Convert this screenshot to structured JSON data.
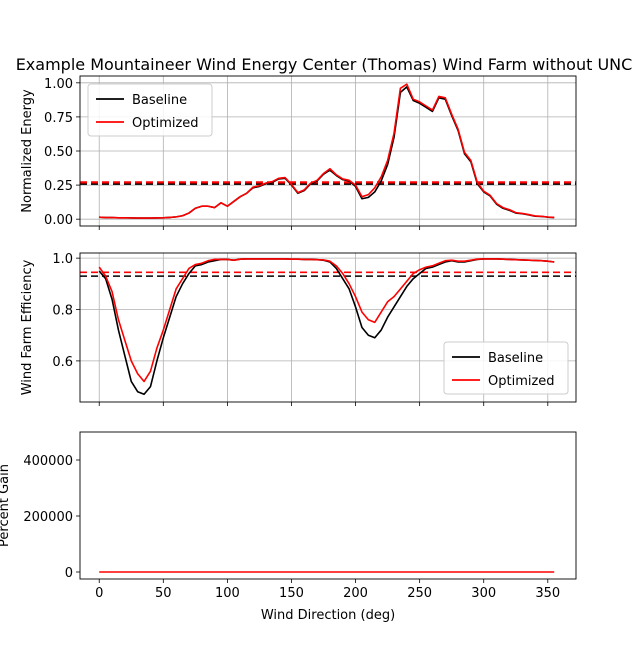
{
  "figure": {
    "title": "Example Mountaineer Wind Energy Center (Thomas) Wind Farm without UNC",
    "xlabel": "Wind Direction (deg)",
    "colors": {
      "baseline": "#000000",
      "optimized": "#ff0000",
      "grid": "#b0b0b0"
    }
  },
  "chart_data": [
    {
      "type": "line",
      "ylabel": "Normalized Energy",
      "xlim": [
        -15,
        372
      ],
      "ylim": [
        -0.05,
        1.05
      ],
      "xticks": [
        0,
        50,
        100,
        150,
        200,
        250,
        300,
        350
      ],
      "yticks": [
        0.0,
        0.25,
        0.5,
        0.75,
        1.0
      ],
      "ytick_labels": [
        "0.00",
        "0.25",
        "0.50",
        "0.75",
        "1.00"
      ],
      "grid": true,
      "legend_placement": "upper-left",
      "x": [
        0,
        5,
        10,
        15,
        20,
        25,
        30,
        35,
        40,
        45,
        50,
        55,
        60,
        65,
        70,
        75,
        80,
        85,
        90,
        95,
        100,
        105,
        110,
        115,
        120,
        125,
        130,
        135,
        140,
        145,
        150,
        155,
        160,
        165,
        170,
        175,
        180,
        185,
        190,
        195,
        200,
        205,
        210,
        215,
        220,
        225,
        230,
        235,
        240,
        245,
        250,
        255,
        260,
        265,
        270,
        275,
        280,
        285,
        290,
        295,
        300,
        305,
        310,
        315,
        320,
        325,
        330,
        335,
        340,
        345,
        350,
        355
      ],
      "series": [
        {
          "name": "Baseline",
          "color": "#000000",
          "values": [
            0.015,
            0.012,
            0.012,
            0.01,
            0.01,
            0.009,
            0.008,
            0.008,
            0.008,
            0.009,
            0.01,
            0.013,
            0.017,
            0.025,
            0.045,
            0.08,
            0.095,
            0.095,
            0.085,
            0.12,
            0.095,
            0.13,
            0.165,
            0.19,
            0.23,
            0.24,
            0.26,
            0.27,
            0.295,
            0.3,
            0.25,
            0.19,
            0.21,
            0.26,
            0.28,
            0.33,
            0.36,
            0.32,
            0.29,
            0.28,
            0.24,
            0.15,
            0.16,
            0.2,
            0.28,
            0.4,
            0.6,
            0.93,
            0.97,
            0.87,
            0.85,
            0.82,
            0.79,
            0.89,
            0.88,
            0.76,
            0.65,
            0.48,
            0.42,
            0.26,
            0.2,
            0.17,
            0.11,
            0.08,
            0.065,
            0.045,
            0.04,
            0.032,
            0.022,
            0.02,
            0.015,
            0.012
          ],
          "mean": 0.26
        },
        {
          "name": "Optimized",
          "color": "#ff0000",
          "values": [
            0.015,
            0.012,
            0.012,
            0.01,
            0.01,
            0.009,
            0.008,
            0.008,
            0.008,
            0.009,
            0.01,
            0.013,
            0.017,
            0.025,
            0.045,
            0.08,
            0.095,
            0.095,
            0.085,
            0.12,
            0.095,
            0.13,
            0.165,
            0.19,
            0.235,
            0.245,
            0.265,
            0.275,
            0.3,
            0.305,
            0.255,
            0.195,
            0.215,
            0.265,
            0.285,
            0.335,
            0.37,
            0.325,
            0.295,
            0.285,
            0.25,
            0.165,
            0.18,
            0.23,
            0.31,
            0.43,
            0.63,
            0.96,
            0.99,
            0.88,
            0.86,
            0.83,
            0.8,
            0.9,
            0.89,
            0.77,
            0.66,
            0.49,
            0.43,
            0.27,
            0.205,
            0.175,
            0.115,
            0.085,
            0.07,
            0.048,
            0.042,
            0.034,
            0.024,
            0.021,
            0.016,
            0.013
          ],
          "mean": 0.27
        }
      ]
    },
    {
      "type": "line",
      "ylabel": "Wind Farm Efficiency",
      "xlim": [
        -15,
        372
      ],
      "ylim": [
        0.44,
        1.02
      ],
      "xticks": [
        0,
        50,
        100,
        150,
        200,
        250,
        300,
        350
      ],
      "yticks": [
        0.6,
        0.8,
        1.0
      ],
      "ytick_labels": [
        "0.6",
        "0.8",
        "1.0"
      ],
      "grid": true,
      "legend_placement": "lower-right",
      "x": [
        0,
        5,
        10,
        15,
        20,
        25,
        30,
        35,
        40,
        45,
        50,
        55,
        60,
        65,
        70,
        75,
        80,
        85,
        90,
        95,
        100,
        105,
        110,
        115,
        120,
        125,
        130,
        135,
        140,
        145,
        150,
        155,
        160,
        165,
        170,
        175,
        180,
        185,
        190,
        195,
        200,
        205,
        210,
        215,
        220,
        225,
        230,
        235,
        240,
        245,
        250,
        255,
        260,
        265,
        270,
        275,
        280,
        285,
        290,
        295,
        300,
        305,
        310,
        315,
        320,
        325,
        330,
        335,
        340,
        345,
        350,
        355
      ],
      "series": [
        {
          "name": "Baseline",
          "color": "#000000",
          "values": [
            0.95,
            0.92,
            0.84,
            0.72,
            0.62,
            0.52,
            0.48,
            0.47,
            0.5,
            0.6,
            0.69,
            0.77,
            0.85,
            0.9,
            0.94,
            0.97,
            0.975,
            0.985,
            0.99,
            0.995,
            0.995,
            0.992,
            0.996,
            0.997,
            0.997,
            0.997,
            0.997,
            0.997,
            0.997,
            0.997,
            0.996,
            0.996,
            0.995,
            0.995,
            0.994,
            0.992,
            0.985,
            0.96,
            0.92,
            0.88,
            0.81,
            0.73,
            0.7,
            0.69,
            0.72,
            0.77,
            0.81,
            0.85,
            0.89,
            0.92,
            0.94,
            0.96,
            0.965,
            0.975,
            0.985,
            0.99,
            0.985,
            0.985,
            0.99,
            0.995,
            0.997,
            0.997,
            0.997,
            0.996,
            0.995,
            0.994,
            0.993,
            0.992,
            0.991,
            0.99,
            0.988,
            0.985
          ],
          "mean": 0.93
        },
        {
          "name": "Optimized",
          "color": "#ff0000",
          "values": [
            0.965,
            0.93,
            0.87,
            0.76,
            0.68,
            0.6,
            0.55,
            0.52,
            0.56,
            0.65,
            0.72,
            0.8,
            0.88,
            0.92,
            0.96,
            0.975,
            0.98,
            0.99,
            0.995,
            0.995,
            0.995,
            0.992,
            0.996,
            0.997,
            0.997,
            0.997,
            0.997,
            0.997,
            0.997,
            0.997,
            0.996,
            0.996,
            0.995,
            0.995,
            0.994,
            0.993,
            0.988,
            0.97,
            0.94,
            0.9,
            0.85,
            0.79,
            0.76,
            0.75,
            0.79,
            0.83,
            0.85,
            0.88,
            0.91,
            0.94,
            0.955,
            0.965,
            0.97,
            0.98,
            0.99,
            0.992,
            0.988,
            0.988,
            0.992,
            0.996,
            0.997,
            0.997,
            0.997,
            0.996,
            0.995,
            0.994,
            0.993,
            0.992,
            0.991,
            0.99,
            0.988,
            0.985
          ],
          "mean": 0.945
        }
      ]
    },
    {
      "type": "line",
      "ylabel": "Percent Gain",
      "xlim": [
        -15,
        372
      ],
      "ylim": [
        -25000,
        500000
      ],
      "xticks": [
        0,
        50,
        100,
        150,
        200,
        250,
        300,
        350
      ],
      "xtick_labels": [
        "0",
        "50",
        "100",
        "150",
        "200",
        "250",
        "300",
        "350"
      ],
      "yticks": [
        0,
        200000,
        400000
      ],
      "ytick_labels": [
        "0",
        "200000",
        "400000"
      ],
      "grid": false,
      "series": [
        {
          "name": "Optimized",
          "color": "#ff0000",
          "x": [
            0,
            355
          ],
          "values": [
            0,
            0
          ]
        }
      ]
    }
  ]
}
